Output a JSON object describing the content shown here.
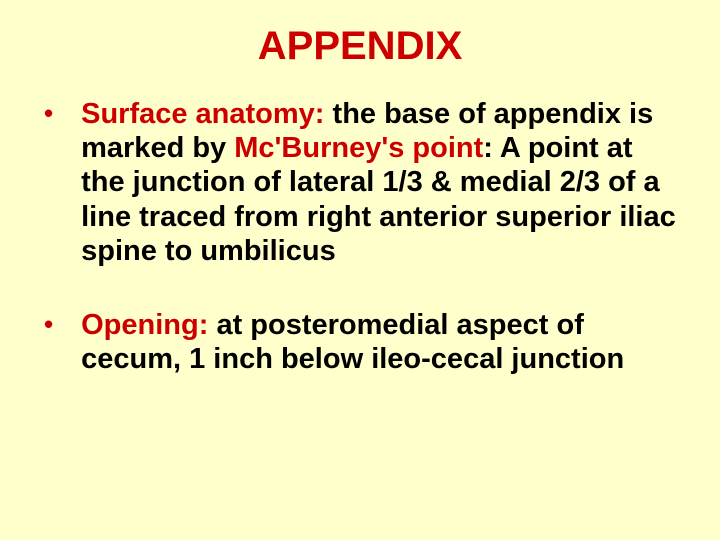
{
  "slide": {
    "background_color": "#ffffcc",
    "title": {
      "text": "APPENDIX",
      "color": "#cc0000",
      "fontsize": 40,
      "font_weight": "bold"
    },
    "bullets": [
      {
        "marker": "•",
        "marker_color": "#cc0000",
        "segments": [
          {
            "text": "Surface anatomy: ",
            "color": "#cc0000",
            "bold": true
          },
          {
            "text": "the base of appendix is marked by ",
            "color": "#000000",
            "bold": true
          },
          {
            "text": "Mc'Burney's point",
            "color": "#cc0000",
            "bold": true
          },
          {
            "text": ": A point at the junction of lateral 1/3 & medial 2/3 of a line traced from right anterior superior iliac spine to umbilicus",
            "color": "#000000",
            "bold": true
          }
        ]
      },
      {
        "marker": "•",
        "marker_color": "#cc0000",
        "segments": [
          {
            "text": "Opening: ",
            "color": "#cc0000",
            "bold": true
          },
          {
            "text": "at posteromedial aspect of cecum, 1 inch below ileo-cecal junction",
            "color": "#000000",
            "bold": true
          }
        ]
      }
    ],
    "body_fontsize": 29,
    "body_font_weight": "bold"
  }
}
